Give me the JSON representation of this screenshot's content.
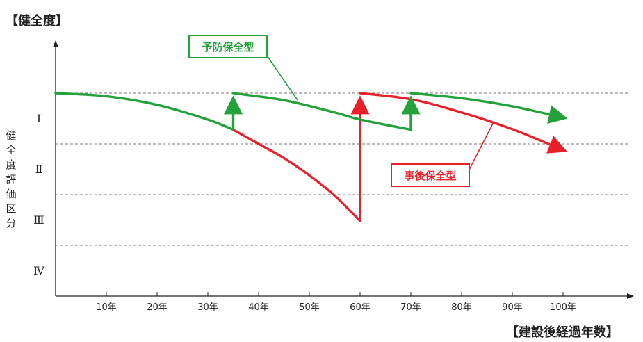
{
  "chart_data": {
    "type": "line",
    "title": "【健全度】",
    "xlabel": "【建設後経過年数】",
    "ylabel": "健全度評価区分",
    "x_ticks": [
      "10年",
      "20年",
      "30年",
      "40年",
      "50年",
      "60年",
      "70年",
      "80年",
      "90年",
      "100年"
    ],
    "xlim": [
      0,
      113
    ],
    "band_labels": [
      "Ⅰ",
      "Ⅱ",
      "Ⅲ",
      "Ⅳ"
    ],
    "ylim": [
      0,
      4
    ],
    "grid": "dashed horizontal at band boundaries",
    "series": [
      {
        "name": "予防保全型",
        "color": "#23a23a",
        "segments": [
          {
            "points": [
              [
                0,
                3.0
              ],
              [
                10,
                2.94
              ],
              [
                20,
                2.77
              ],
              [
                30,
                2.48
              ],
              [
                35,
                2.28
              ]
            ]
          },
          {
            "points": [
              [
                35,
                3.0
              ],
              [
                45,
                2.86
              ],
              [
                55,
                2.62
              ],
              [
                60,
                2.48
              ],
              [
                70,
                2.28
              ]
            ],
            "repair_from": 2.28
          },
          {
            "points": [
              [
                70,
                3.0
              ],
              [
                80,
                2.9
              ],
              [
                90,
                2.74
              ],
              [
                100,
                2.52
              ]
            ],
            "repair_from": 2.28,
            "arrow_end": true
          }
        ]
      },
      {
        "name": "事後保全型",
        "color": "#e8202a",
        "segments": [
          {
            "points": [
              [
                35,
                2.28
              ],
              [
                40,
                2.0
              ],
              [
                45,
                1.72
              ],
              [
                50,
                1.38
              ],
              [
                55,
                0.98
              ],
              [
                60,
                0.48
              ]
            ]
          },
          {
            "points": [
              [
                60,
                3.0
              ],
              [
                70,
                2.88
              ],
              [
                80,
                2.62
              ],
              [
                90,
                2.29
              ],
              [
                100,
                1.88
              ]
            ],
            "repair_from": 0.48,
            "arrow_end": true
          }
        ]
      }
    ]
  },
  "callouts": {
    "preventive": "予防保全型",
    "reactive": "事後保全型"
  }
}
